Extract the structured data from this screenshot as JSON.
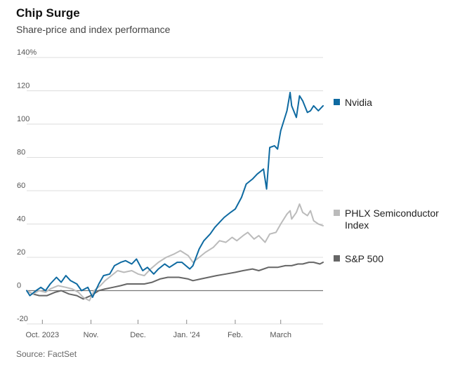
{
  "header": {
    "title": "Chip Surge",
    "subtitle": "Share-price and index performance"
  },
  "footer": {
    "source": "Source: FactSet"
  },
  "chart_data": {
    "type": "line",
    "title": "Chip Surge",
    "subtitle": "Share-price and index performance",
    "ylim": [
      -20,
      140
    ],
    "yticks": [
      -20,
      0,
      20,
      40,
      60,
      80,
      100,
      120,
      140
    ],
    "ytick_labels": [
      "-20",
      "0",
      "20",
      "40",
      "60",
      "80",
      "100",
      "120",
      "140%"
    ],
    "xlim": [
      "2023-09-21",
      "2024-03-28"
    ],
    "xticks": [
      {
        "date": "2023-10-01",
        "label": "Oct. 2023"
      },
      {
        "date": "2023-11-01",
        "label": "Nov."
      },
      {
        "date": "2023-12-01",
        "label": "Dec."
      },
      {
        "date": "2024-01-01",
        "label": "Jan. '24"
      },
      {
        "date": "2024-02-01",
        "label": "Feb."
      },
      {
        "date": "2024-03-01",
        "label": "March"
      }
    ],
    "grid": true,
    "legend_position": "right",
    "series": [
      {
        "name": "S&P 500",
        "color": "#666666",
        "points": [
          [
            "2023-09-21",
            0
          ],
          [
            "2023-09-25",
            -2
          ],
          [
            "2023-09-29",
            -3
          ],
          [
            "2023-10-04",
            -3
          ],
          [
            "2023-10-09",
            -1
          ],
          [
            "2023-10-13",
            0
          ],
          [
            "2023-10-18",
            -2
          ],
          [
            "2023-10-23",
            -3
          ],
          [
            "2023-10-27",
            -5
          ],
          [
            "2023-11-01",
            -3
          ],
          [
            "2023-11-06",
            0
          ],
          [
            "2023-11-10",
            1
          ],
          [
            "2023-11-15",
            2
          ],
          [
            "2023-11-20",
            3
          ],
          [
            "2023-11-24",
            4
          ],
          [
            "2023-11-30",
            4
          ],
          [
            "2023-12-05",
            4
          ],
          [
            "2023-12-10",
            5
          ],
          [
            "2023-12-15",
            7
          ],
          [
            "2023-12-20",
            8
          ],
          [
            "2023-12-27",
            8
          ],
          [
            "2024-01-02",
            7
          ],
          [
            "2024-01-05",
            6
          ],
          [
            "2024-01-10",
            7
          ],
          [
            "2024-01-15",
            8
          ],
          [
            "2024-01-20",
            9
          ],
          [
            "2024-01-26",
            10
          ],
          [
            "2024-02-01",
            11
          ],
          [
            "2024-02-06",
            12
          ],
          [
            "2024-02-12",
            13
          ],
          [
            "2024-02-16",
            12
          ],
          [
            "2024-02-22",
            14
          ],
          [
            "2024-02-28",
            14
          ],
          [
            "2024-03-04",
            15
          ],
          [
            "2024-03-08",
            15
          ],
          [
            "2024-03-12",
            16
          ],
          [
            "2024-03-15",
            16
          ],
          [
            "2024-03-19",
            17
          ],
          [
            "2024-03-22",
            17
          ],
          [
            "2024-03-26",
            16
          ],
          [
            "2024-03-28",
            17
          ]
        ]
      },
      {
        "name": "PHLX Semiconductor Index",
        "color": "#bbbbbb",
        "points": [
          [
            "2023-09-21",
            0
          ],
          [
            "2023-09-25",
            -2
          ],
          [
            "2023-09-29",
            0
          ],
          [
            "2023-10-03",
            -1
          ],
          [
            "2023-10-06",
            1
          ],
          [
            "2023-10-11",
            3
          ],
          [
            "2023-10-16",
            2
          ],
          [
            "2023-10-20",
            1
          ],
          [
            "2023-10-24",
            -1
          ],
          [
            "2023-10-27",
            -4
          ],
          [
            "2023-10-31",
            -6
          ],
          [
            "2023-11-03",
            0
          ],
          [
            "2023-11-07",
            3
          ],
          [
            "2023-11-10",
            6
          ],
          [
            "2023-11-14",
            9
          ],
          [
            "2023-11-18",
            12
          ],
          [
            "2023-11-22",
            11
          ],
          [
            "2023-11-27",
            12
          ],
          [
            "2023-12-01",
            10
          ],
          [
            "2023-12-05",
            9
          ],
          [
            "2023-12-09",
            13
          ],
          [
            "2023-12-14",
            17
          ],
          [
            "2023-12-19",
            20
          ],
          [
            "2023-12-24",
            22
          ],
          [
            "2023-12-28",
            24
          ],
          [
            "2024-01-02",
            21
          ],
          [
            "2024-01-05",
            17
          ],
          [
            "2024-01-09",
            20
          ],
          [
            "2024-01-13",
            23
          ],
          [
            "2024-01-18",
            26
          ],
          [
            "2024-01-22",
            30
          ],
          [
            "2024-01-26",
            29
          ],
          [
            "2024-01-30",
            32
          ],
          [
            "2024-02-02",
            30
          ],
          [
            "2024-02-06",
            33
          ],
          [
            "2024-02-09",
            35
          ],
          [
            "2024-02-13",
            31
          ],
          [
            "2024-02-16",
            33
          ],
          [
            "2024-02-20",
            29
          ],
          [
            "2024-02-23",
            34
          ],
          [
            "2024-02-27",
            35
          ],
          [
            "2024-03-01",
            40
          ],
          [
            "2024-03-05",
            46
          ],
          [
            "2024-03-07",
            48
          ],
          [
            "2024-03-08",
            43
          ],
          [
            "2024-03-11",
            47
          ],
          [
            "2024-03-13",
            52
          ],
          [
            "2024-03-15",
            47
          ],
          [
            "2024-03-18",
            45
          ],
          [
            "2024-03-20",
            48
          ],
          [
            "2024-03-22",
            42
          ],
          [
            "2024-03-25",
            40
          ],
          [
            "2024-03-28",
            39
          ]
        ]
      },
      {
        "name": "Nvidia",
        "color": "#0e6aa1",
        "points": [
          [
            "2023-09-21",
            0
          ],
          [
            "2023-09-23",
            -3
          ],
          [
            "2023-09-27",
            0
          ],
          [
            "2023-09-30",
            2
          ],
          [
            "2023-10-03",
            0
          ],
          [
            "2023-10-06",
            4
          ],
          [
            "2023-10-10",
            8
          ],
          [
            "2023-10-13",
            5
          ],
          [
            "2023-10-16",
            9
          ],
          [
            "2023-10-19",
            6
          ],
          [
            "2023-10-23",
            4
          ],
          [
            "2023-10-26",
            0
          ],
          [
            "2023-10-30",
            2
          ],
          [
            "2023-11-02",
            -4
          ],
          [
            "2023-11-06",
            4
          ],
          [
            "2023-11-09",
            9
          ],
          [
            "2023-11-13",
            10
          ],
          [
            "2023-11-16",
            15
          ],
          [
            "2023-11-20",
            17
          ],
          [
            "2023-11-23",
            18
          ],
          [
            "2023-11-27",
            16
          ],
          [
            "2023-11-30",
            19
          ],
          [
            "2023-12-04",
            12
          ],
          [
            "2023-12-07",
            14
          ],
          [
            "2023-12-11",
            10
          ],
          [
            "2023-12-14",
            13
          ],
          [
            "2023-12-18",
            16
          ],
          [
            "2023-12-21",
            14
          ],
          [
            "2023-12-26",
            17
          ],
          [
            "2023-12-29",
            17
          ],
          [
            "2024-01-03",
            13
          ],
          [
            "2024-01-05",
            15
          ],
          [
            "2024-01-09",
            25
          ],
          [
            "2024-01-12",
            30
          ],
          [
            "2024-01-16",
            34
          ],
          [
            "2024-01-19",
            38
          ],
          [
            "2024-01-22",
            41
          ],
          [
            "2024-01-25",
            44
          ],
          [
            "2024-01-29",
            47
          ],
          [
            "2024-02-01",
            49
          ],
          [
            "2024-02-05",
            56
          ],
          [
            "2024-02-08",
            64
          ],
          [
            "2024-02-12",
            67
          ],
          [
            "2024-02-15",
            70
          ],
          [
            "2024-02-19",
            73
          ],
          [
            "2024-02-21",
            61
          ],
          [
            "2024-02-23",
            86
          ],
          [
            "2024-02-26",
            87
          ],
          [
            "2024-02-28",
            85
          ],
          [
            "2024-03-01",
            96
          ],
          [
            "2024-03-05",
            108
          ],
          [
            "2024-03-07",
            119
          ],
          [
            "2024-03-08",
            111
          ],
          [
            "2024-03-11",
            104
          ],
          [
            "2024-03-13",
            117
          ],
          [
            "2024-03-15",
            114
          ],
          [
            "2024-03-18",
            107
          ],
          [
            "2024-03-20",
            108
          ],
          [
            "2024-03-22",
            111
          ],
          [
            "2024-03-25",
            108
          ],
          [
            "2024-03-28",
            111
          ]
        ]
      }
    ],
    "legend": [
      {
        "name": "Nvidia",
        "color": "#0e6aa1",
        "lines": [
          "Nvidia"
        ]
      },
      {
        "name": "PHLX Semiconductor Index",
        "color": "#bbbbbb",
        "lines": [
          "PHLX Semiconductor",
          "Index"
        ]
      },
      {
        "name": "S&P 500",
        "color": "#666666",
        "lines": [
          "S&P 500"
        ]
      }
    ]
  }
}
